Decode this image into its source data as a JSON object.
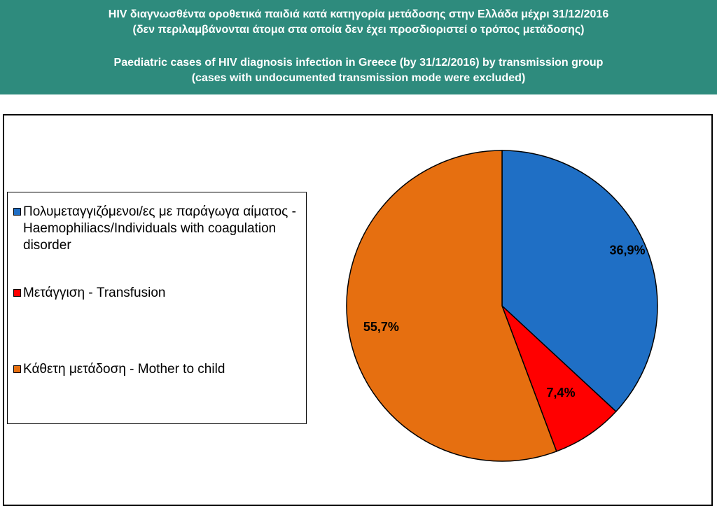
{
  "header": {
    "title_gr_line1": "HIV διαγνωσθέντα οροθετικά παιδιά κατά κατηγορία μετάδοσης στην Ελλάδα μέχρι 31/12/2016",
    "title_gr_line2": "(δεν περιλαμβάνονται άτομα στα οποία δεν έχει προσδιοριστεί ο τρόπος μετάδοσης)",
    "title_en_line1": "Paediatric cases of HIV diagnosis infection in Greece (by 31/12/2016) by transmission group",
    "title_en_line2": "(cases with undocumented transmission mode were excluded)",
    "background_color": "#2e8b7d"
  },
  "chart_data": {
    "type": "pie",
    "legend_position": "left",
    "start_angle_deg": 0,
    "direction": "clockwise",
    "slices": [
      {
        "name": "Πολυμεταγγιζόμενοι/ες με παράγωγα αίματος - Haemophiliacs/Individuals with coagulation disorder",
        "value": 36.9,
        "label": "36,9%",
        "color": "#1f6fc5"
      },
      {
        "name": "Μετάγγιση - Transfusion",
        "value": 7.4,
        "label": "7,4%",
        "color": "#ff0000"
      },
      {
        "name": "Κάθετη μετάδοση - Mother to child",
        "value": 55.7,
        "label": "55,7%",
        "color": "#e66f10"
      }
    ]
  }
}
